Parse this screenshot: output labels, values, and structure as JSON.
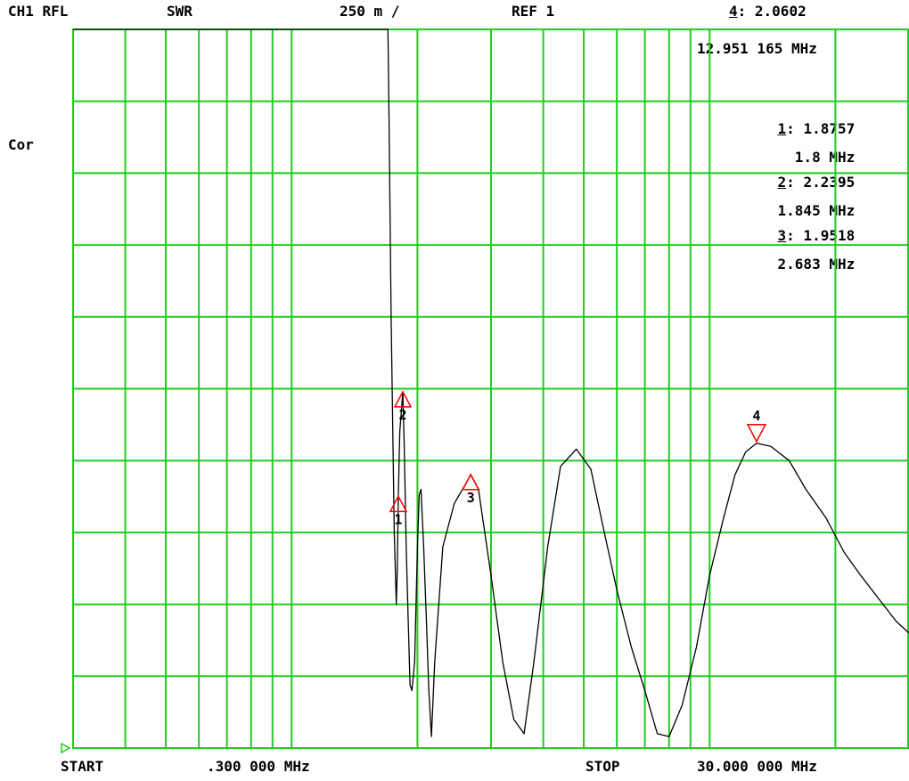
{
  "header": {
    "channel": "CH1 RFL",
    "format": "SWR",
    "scale": "250 m /",
    "reference": "REF 1",
    "active_marker_index": "4",
    "active_marker_value": "2.0602",
    "active_marker_freq": "12.951 165 MHz"
  },
  "status": {
    "correction": "Cor"
  },
  "footer": {
    "start_label": "START",
    "start_value": ".300 000 MHz",
    "stop_label": "STOP",
    "stop_value": "30.000 000 MHz"
  },
  "markers_list": [
    {
      "index": "1",
      "value": "1.8757",
      "freq": "1.8 MHz"
    },
    {
      "index": "2",
      "value": "2.2395",
      "freq": "1.845 MHz"
    },
    {
      "index": "3",
      "value": "1.9518",
      "freq": "2.683 MHz"
    }
  ],
  "colors": {
    "grid": "#22cc22",
    "trace": "#000000",
    "marker": "#ff0000",
    "background": "#ffffff"
  },
  "chart_data": {
    "type": "line",
    "title": "",
    "xlabel": "",
    "ylabel": "",
    "x_scale": "log",
    "xlim": [
      0.3,
      30
    ],
    "ylim": [
      1,
      3.5
    ],
    "grid": true,
    "x_gridlines": [
      0.4,
      0.5,
      0.6,
      0.7,
      0.8,
      0.9,
      1,
      2,
      3,
      4,
      5,
      6,
      7,
      8,
      9,
      10,
      20,
      30
    ],
    "y_gridlines": [
      1.25,
      1.5,
      1.75,
      2,
      2.25,
      2.5,
      2.75,
      3,
      3.25
    ],
    "series": [
      {
        "values": [
          [
            0.3,
            3.5
          ],
          [
            1.7,
            3.5
          ],
          [
            1.71,
            3.2
          ],
          [
            1.73,
            2.5
          ],
          [
            1.76,
            1.75
          ],
          [
            1.78,
            1.5
          ],
          [
            1.79,
            1.62
          ],
          [
            1.8,
            1.88
          ],
          [
            1.815,
            2.1
          ],
          [
            1.845,
            2.24
          ],
          [
            1.86,
            2.05
          ],
          [
            1.88,
            1.7
          ],
          [
            1.9,
            1.45
          ],
          [
            1.92,
            1.22
          ],
          [
            1.94,
            1.2
          ],
          [
            1.97,
            1.3
          ],
          [
            2.0,
            1.7
          ],
          [
            2.02,
            1.88
          ],
          [
            2.04,
            1.9
          ],
          [
            2.07,
            1.7
          ],
          [
            2.1,
            1.45
          ],
          [
            2.13,
            1.2
          ],
          [
            2.16,
            1.04
          ],
          [
            2.2,
            1.3
          ],
          [
            2.3,
            1.7
          ],
          [
            2.45,
            1.85
          ],
          [
            2.683,
            1.95
          ],
          [
            2.8,
            1.9
          ],
          [
            3.0,
            1.6
          ],
          [
            3.2,
            1.3
          ],
          [
            3.4,
            1.1
          ],
          [
            3.6,
            1.05
          ],
          [
            3.8,
            1.3
          ],
          [
            4.1,
            1.7
          ],
          [
            4.4,
            1.98
          ],
          [
            4.8,
            2.04
          ],
          [
            5.2,
            1.97
          ],
          [
            5.6,
            1.75
          ],
          [
            6.0,
            1.55
          ],
          [
            6.5,
            1.35
          ],
          [
            7.0,
            1.2
          ],
          [
            7.5,
            1.05
          ],
          [
            8.0,
            1.04
          ],
          [
            8.6,
            1.15
          ],
          [
            9.3,
            1.35
          ],
          [
            10.0,
            1.6
          ],
          [
            10.8,
            1.8
          ],
          [
            11.5,
            1.95
          ],
          [
            12.2,
            2.03
          ],
          [
            12.951,
            2.06
          ],
          [
            14.0,
            2.05
          ],
          [
            15.5,
            2.0
          ],
          [
            17.0,
            1.9
          ],
          [
            19.0,
            1.8
          ],
          [
            21.0,
            1.68
          ],
          [
            23.0,
            1.6
          ],
          [
            26.0,
            1.5
          ],
          [
            28.0,
            1.44
          ],
          [
            30.0,
            1.4
          ]
        ]
      }
    ],
    "markers": [
      {
        "label": "1",
        "x": 1.8,
        "y": 1.8757,
        "direction": "up"
      },
      {
        "label": "2",
        "x": 1.845,
        "y": 2.2395,
        "direction": "up"
      },
      {
        "label": "3",
        "x": 2.683,
        "y": 1.9518,
        "direction": "up"
      },
      {
        "label": "4",
        "x": 12.951,
        "y": 2.0602,
        "direction": "down"
      }
    ],
    "reference_level": 1
  }
}
